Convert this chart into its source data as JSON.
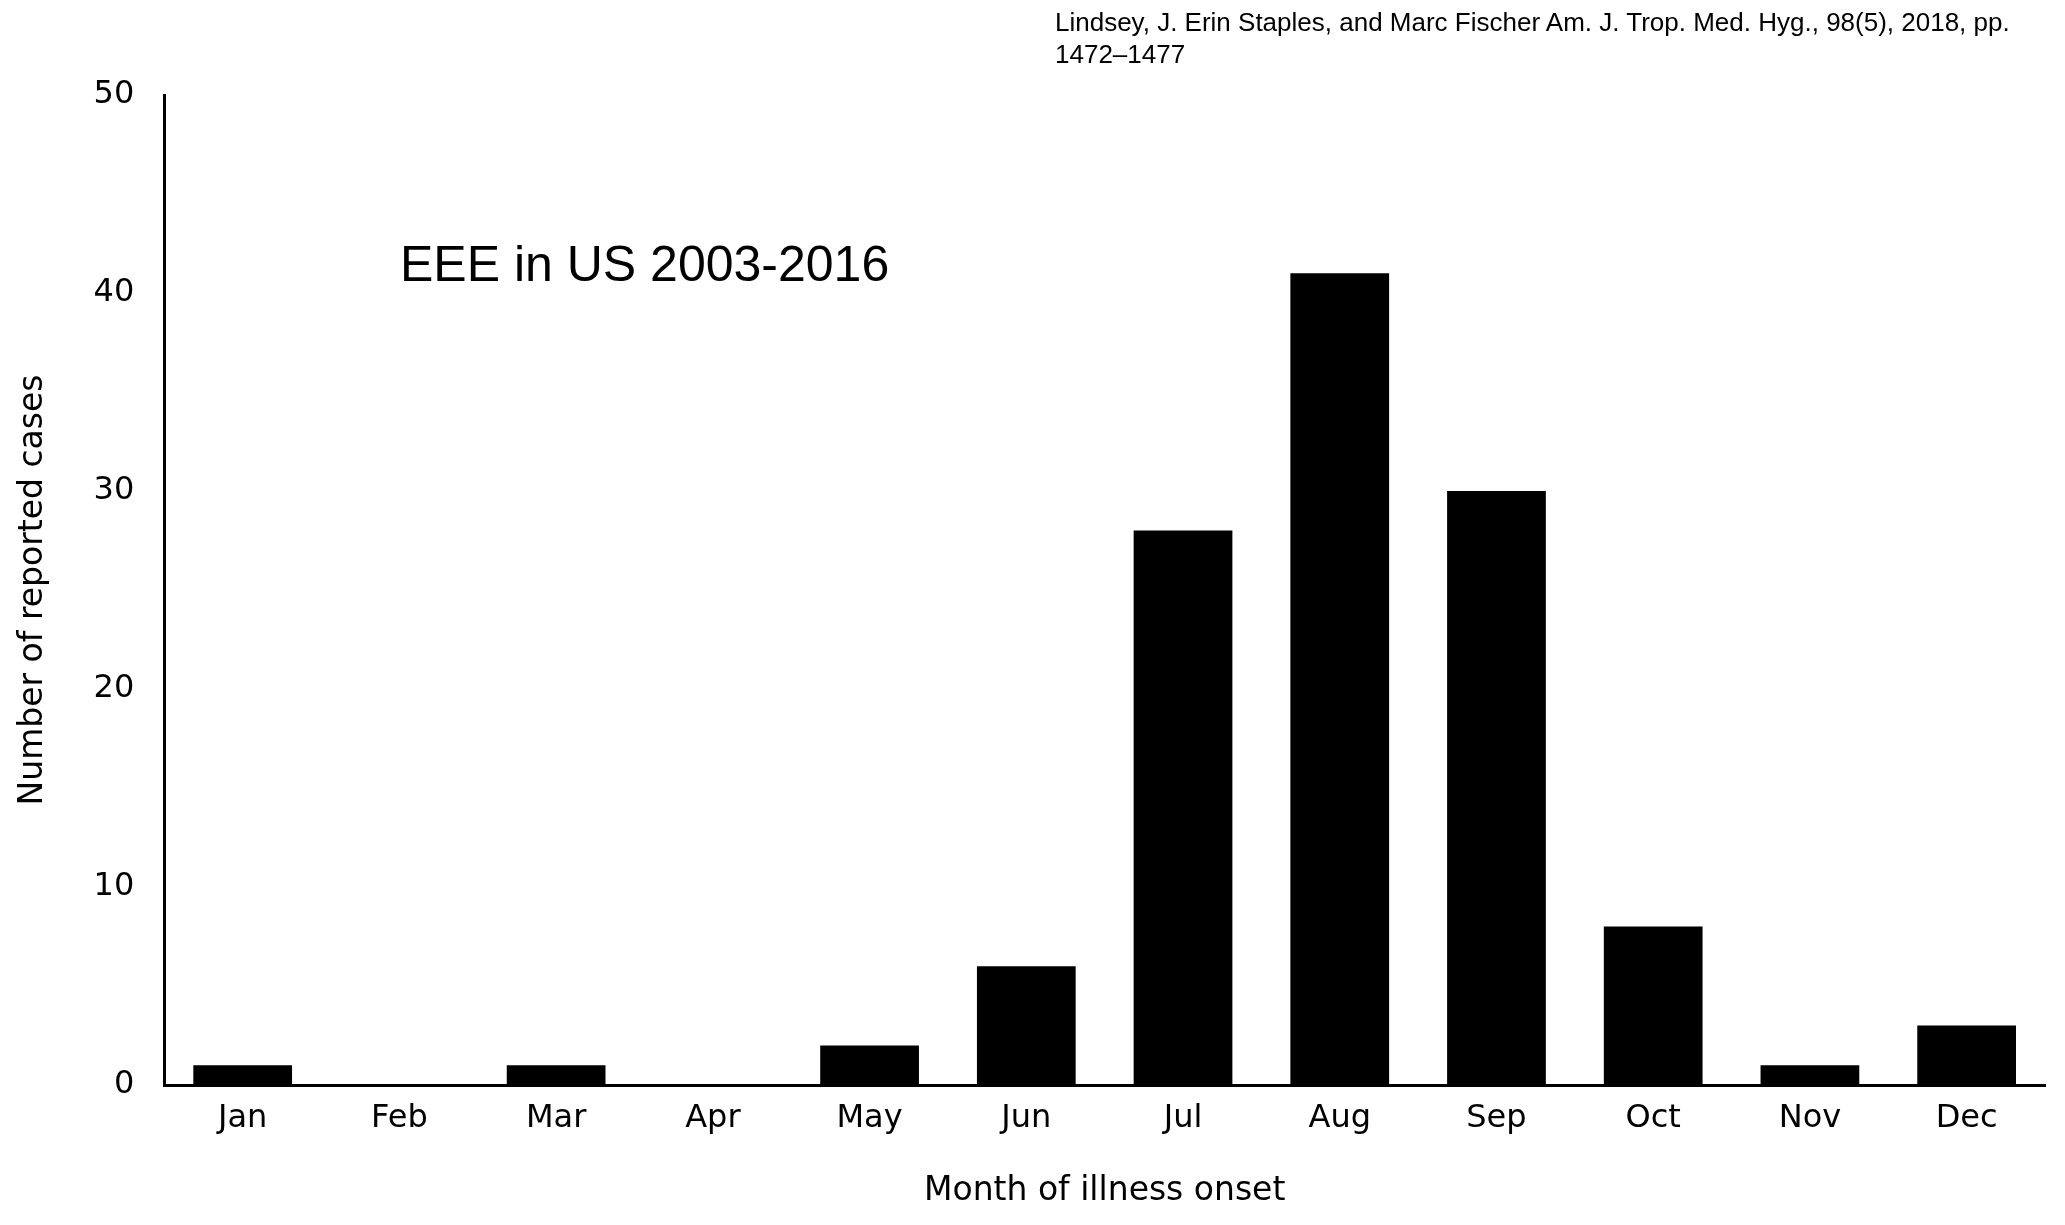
{
  "chart_data": {
    "type": "bar",
    "title": "EEE in US 2003-2016",
    "xlabel": "Month of illness onset",
    "ylabel": "Number of reported cases",
    "annotations": [
      "Lindsey, J. Erin Staples, and Marc Fischer Am. J. Trop. Med. Hyg., 98(5), 2018, pp. 1472–1477"
    ],
    "categories": [
      "Jan",
      "Feb",
      "Mar",
      "Apr",
      "May",
      "Jun",
      "Jul",
      "Aug",
      "Sep",
      "Oct",
      "Nov",
      "Dec"
    ],
    "values": [
      1,
      0,
      1,
      0,
      2,
      6,
      28,
      41,
      30,
      8,
      1,
      3
    ],
    "color": "#000000",
    "ylim": [
      0,
      50
    ],
    "yticks": [
      0,
      10,
      20,
      30,
      40,
      50
    ],
    "grid": false,
    "legend": false
  }
}
